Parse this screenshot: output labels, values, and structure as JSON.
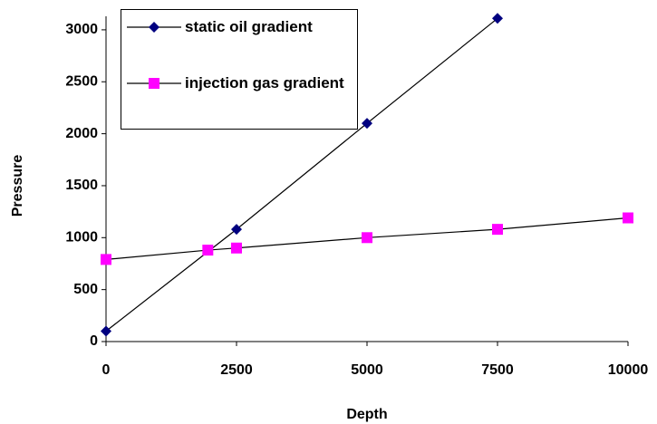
{
  "chart_data": {
    "type": "line",
    "x_label": "Depth",
    "y_label": "Pressure",
    "xlim": [
      0,
      10000
    ],
    "xticks": [
      0,
      2500,
      5000,
      7500,
      10000
    ],
    "ylim": [
      0,
      3130
    ],
    "yticks": [
      0,
      500,
      1000,
      1500,
      2000,
      2500,
      3000
    ],
    "grid": false,
    "legend": "upper left",
    "series": [
      {
        "name": "static oil gradient",
        "color": "#000080",
        "marker": "diamond",
        "x": [
          0,
          2500,
          5000,
          7500
        ],
        "values": [
          100,
          1080,
          2100,
          3110
        ]
      },
      {
        "name": "injection gas gradient",
        "color": "#ff00ff",
        "marker": "square",
        "x": [
          0,
          1950,
          2500,
          5000,
          7500,
          10000
        ],
        "values": [
          790,
          880,
          900,
          1000,
          1080,
          1190
        ]
      }
    ]
  }
}
